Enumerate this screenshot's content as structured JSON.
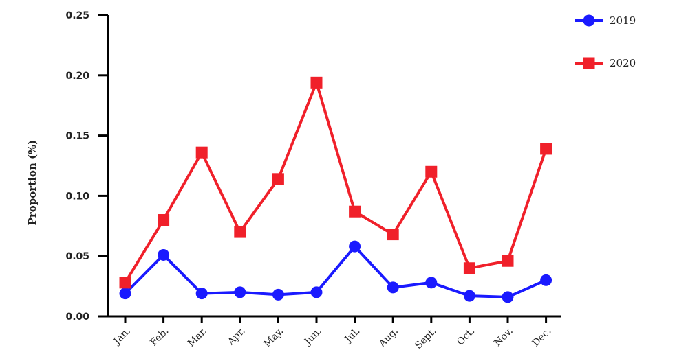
{
  "chart_data": {
    "type": "line",
    "title": "",
    "xlabel": "",
    "ylabel": "Proportion (%)",
    "ylim": [
      0,
      0.25
    ],
    "yticks": [
      "0.00",
      "0.05",
      "0.10",
      "0.15",
      "0.20",
      "0.25"
    ],
    "grid": false,
    "legend": "top-right",
    "categories": [
      "Jan.",
      "Feb.",
      "Mar.",
      "Apr.",
      "May.",
      "Jun.",
      "Jul.",
      "Aug.",
      "Sept.",
      "Oct.",
      "Nov.",
      "Dec."
    ],
    "series": [
      {
        "name": "2019",
        "color": "#1a1aff",
        "marker": "circle",
        "values": [
          0.019,
          0.051,
          0.019,
          0.02,
          0.018,
          0.02,
          0.058,
          0.024,
          0.028,
          0.017,
          0.016,
          0.03
        ]
      },
      {
        "name": "2020",
        "color": "#f0202a",
        "marker": "square",
        "values": [
          0.028,
          0.08,
          0.136,
          0.07,
          0.114,
          0.194,
          0.087,
          0.068,
          0.12,
          0.04,
          0.046,
          0.139
        ]
      }
    ]
  }
}
